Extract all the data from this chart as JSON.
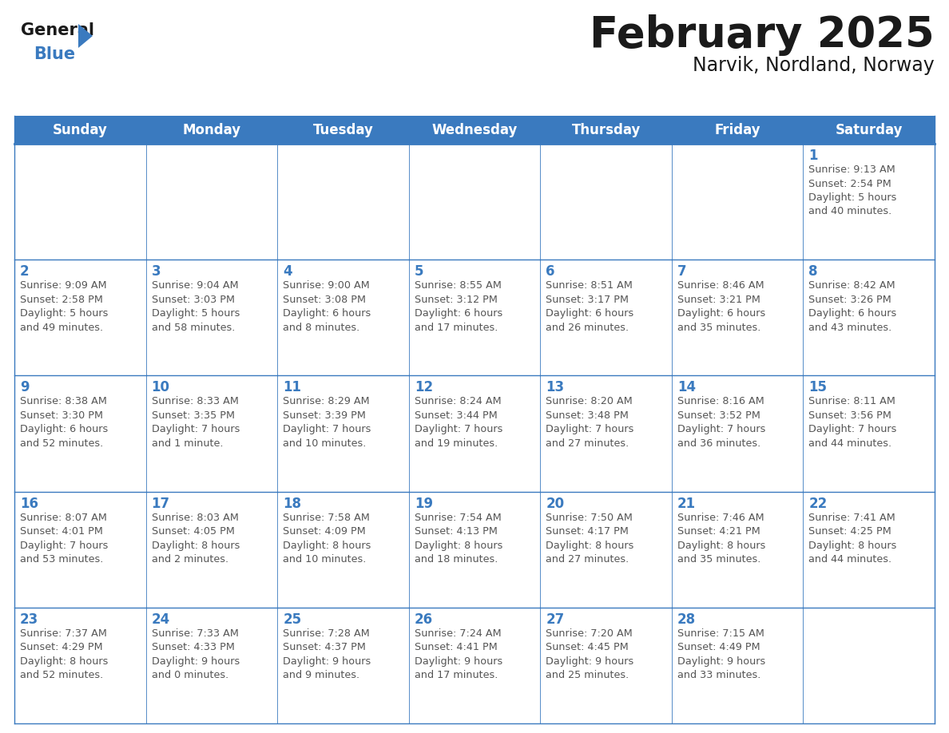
{
  "title": "February 2025",
  "subtitle": "Narvik, Nordland, Norway",
  "header_color": "#3a7abf",
  "header_text_color": "#ffffff",
  "cell_bg_color": "#ffffff",
  "cell_alt_bg": "#f0f4f8",
  "cell_border_color": "#3a7abf",
  "day_number_color": "#3a7abf",
  "info_text_color": "#555555",
  "day_headers": [
    "Sunday",
    "Monday",
    "Tuesday",
    "Wednesday",
    "Thursday",
    "Friday",
    "Saturday"
  ],
  "weeks": [
    [
      {
        "day": "",
        "info": ""
      },
      {
        "day": "",
        "info": ""
      },
      {
        "day": "",
        "info": ""
      },
      {
        "day": "",
        "info": ""
      },
      {
        "day": "",
        "info": ""
      },
      {
        "day": "",
        "info": ""
      },
      {
        "day": "1",
        "info": "Sunrise: 9:13 AM\nSunset: 2:54 PM\nDaylight: 5 hours\nand 40 minutes."
      }
    ],
    [
      {
        "day": "2",
        "info": "Sunrise: 9:09 AM\nSunset: 2:58 PM\nDaylight: 5 hours\nand 49 minutes."
      },
      {
        "day": "3",
        "info": "Sunrise: 9:04 AM\nSunset: 3:03 PM\nDaylight: 5 hours\nand 58 minutes."
      },
      {
        "day": "4",
        "info": "Sunrise: 9:00 AM\nSunset: 3:08 PM\nDaylight: 6 hours\nand 8 minutes."
      },
      {
        "day": "5",
        "info": "Sunrise: 8:55 AM\nSunset: 3:12 PM\nDaylight: 6 hours\nand 17 minutes."
      },
      {
        "day": "6",
        "info": "Sunrise: 8:51 AM\nSunset: 3:17 PM\nDaylight: 6 hours\nand 26 minutes."
      },
      {
        "day": "7",
        "info": "Sunrise: 8:46 AM\nSunset: 3:21 PM\nDaylight: 6 hours\nand 35 minutes."
      },
      {
        "day": "8",
        "info": "Sunrise: 8:42 AM\nSunset: 3:26 PM\nDaylight: 6 hours\nand 43 minutes."
      }
    ],
    [
      {
        "day": "9",
        "info": "Sunrise: 8:38 AM\nSunset: 3:30 PM\nDaylight: 6 hours\nand 52 minutes."
      },
      {
        "day": "10",
        "info": "Sunrise: 8:33 AM\nSunset: 3:35 PM\nDaylight: 7 hours\nand 1 minute."
      },
      {
        "day": "11",
        "info": "Sunrise: 8:29 AM\nSunset: 3:39 PM\nDaylight: 7 hours\nand 10 minutes."
      },
      {
        "day": "12",
        "info": "Sunrise: 8:24 AM\nSunset: 3:44 PM\nDaylight: 7 hours\nand 19 minutes."
      },
      {
        "day": "13",
        "info": "Sunrise: 8:20 AM\nSunset: 3:48 PM\nDaylight: 7 hours\nand 27 minutes."
      },
      {
        "day": "14",
        "info": "Sunrise: 8:16 AM\nSunset: 3:52 PM\nDaylight: 7 hours\nand 36 minutes."
      },
      {
        "day": "15",
        "info": "Sunrise: 8:11 AM\nSunset: 3:56 PM\nDaylight: 7 hours\nand 44 minutes."
      }
    ],
    [
      {
        "day": "16",
        "info": "Sunrise: 8:07 AM\nSunset: 4:01 PM\nDaylight: 7 hours\nand 53 minutes."
      },
      {
        "day": "17",
        "info": "Sunrise: 8:03 AM\nSunset: 4:05 PM\nDaylight: 8 hours\nand 2 minutes."
      },
      {
        "day": "18",
        "info": "Sunrise: 7:58 AM\nSunset: 4:09 PM\nDaylight: 8 hours\nand 10 minutes."
      },
      {
        "day": "19",
        "info": "Sunrise: 7:54 AM\nSunset: 4:13 PM\nDaylight: 8 hours\nand 18 minutes."
      },
      {
        "day": "20",
        "info": "Sunrise: 7:50 AM\nSunset: 4:17 PM\nDaylight: 8 hours\nand 27 minutes."
      },
      {
        "day": "21",
        "info": "Sunrise: 7:46 AM\nSunset: 4:21 PM\nDaylight: 8 hours\nand 35 minutes."
      },
      {
        "day": "22",
        "info": "Sunrise: 7:41 AM\nSunset: 4:25 PM\nDaylight: 8 hours\nand 44 minutes."
      }
    ],
    [
      {
        "day": "23",
        "info": "Sunrise: 7:37 AM\nSunset: 4:29 PM\nDaylight: 8 hours\nand 52 minutes."
      },
      {
        "day": "24",
        "info": "Sunrise: 7:33 AM\nSunset: 4:33 PM\nDaylight: 9 hours\nand 0 minutes."
      },
      {
        "day": "25",
        "info": "Sunrise: 7:28 AM\nSunset: 4:37 PM\nDaylight: 9 hours\nand 9 minutes."
      },
      {
        "day": "26",
        "info": "Sunrise: 7:24 AM\nSunset: 4:41 PM\nDaylight: 9 hours\nand 17 minutes."
      },
      {
        "day": "27",
        "info": "Sunrise: 7:20 AM\nSunset: 4:45 PM\nDaylight: 9 hours\nand 25 minutes."
      },
      {
        "day": "28",
        "info": "Sunrise: 7:15 AM\nSunset: 4:49 PM\nDaylight: 9 hours\nand 33 minutes."
      },
      {
        "day": "",
        "info": ""
      }
    ]
  ],
  "logo_color_general": "#1a1a1a",
  "logo_color_blue": "#3a7abf",
  "title_fontsize": 38,
  "subtitle_fontsize": 17,
  "header_fontsize": 12,
  "day_number_fontsize": 12,
  "info_fontsize": 9.2,
  "logo_fontsize": 15
}
